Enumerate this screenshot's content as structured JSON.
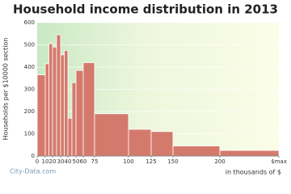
{
  "chart_data": {
    "type": "histogram",
    "title": "Household income distribution in 2013",
    "y_label": "Households per $10000 section",
    "x_label": "in thousands of $",
    "watermark": "City-Data.com",
    "color": "#d47a6c",
    "bins": [
      0,
      10,
      15,
      20,
      25,
      30,
      35,
      40,
      45,
      50,
      60,
      75,
      100,
      125,
      150,
      200,
      250
    ],
    "values": [
      365,
      415,
      505,
      490,
      545,
      455,
      475,
      170,
      330,
      385,
      420,
      190,
      120,
      110,
      45,
      25
    ],
    "ylim": [
      0,
      600
    ],
    "yticks": [
      0,
      100,
      200,
      300,
      400,
      500,
      600
    ],
    "xticks": [
      0,
      10,
      20,
      30,
      40,
      50,
      60,
      75,
      100,
      125,
      150,
      200,
      {
        "value": 250,
        "label": "$max"
      }
    ]
  }
}
